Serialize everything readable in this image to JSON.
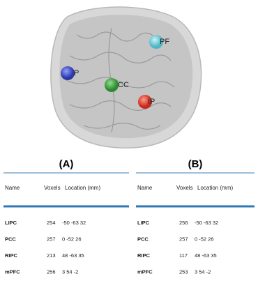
{
  "figure": {
    "brain_labels": [
      "P",
      "CC",
      "PF",
      "IP"
    ],
    "panels": [
      {
        "label": "(A)",
        "columns": [
          "Name",
          "Voxels",
          "Location (mm)"
        ],
        "rows": [
          [
            "LIPC",
            254,
            "-50 -63 32"
          ],
          [
            "PCC",
            257,
            "0 -52 26"
          ],
          [
            "RIPC",
            213,
            "48 -63 35"
          ],
          [
            "mPFC",
            256,
            "3 54 -2"
          ]
        ]
      },
      {
        "label": "(B)",
        "columns": [
          "Name",
          "Voxels",
          "Location (mm)"
        ],
        "rows": [
          [
            "LIPC",
            256,
            "-50 -63 32"
          ],
          [
            "PCC",
            257,
            "0 -52 26"
          ],
          [
            "RIPC",
            117,
            "48 -63 35"
          ],
          [
            "mPFC",
            253,
            "3 54 -2"
          ]
        ]
      }
    ]
  }
}
